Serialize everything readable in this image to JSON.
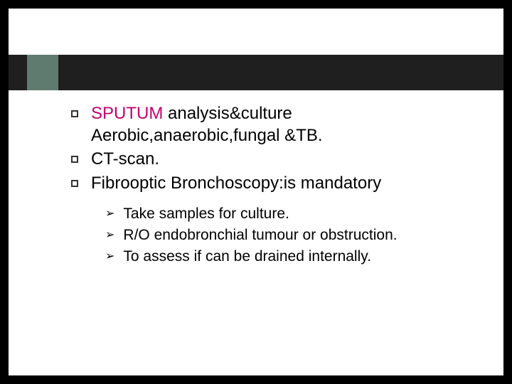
{
  "colors": {
    "page_bg": "#000000",
    "slide_bg": "#ffffff",
    "header_bar": "#1f1f1f",
    "accent_block": "#5f7b6f",
    "text": "#000000",
    "accent_text": "#c00070"
  },
  "typography": {
    "main_fontsize": 24,
    "sub_fontsize": 21,
    "font_family": "Arial"
  },
  "main_items": [
    {
      "prefix_accent": "SPUTUM",
      "text": " analysis&culture Aerobic,anaerobic,fungal &TB."
    },
    {
      "prefix_accent": "",
      "text": "CT-scan."
    },
    {
      "prefix_accent": "",
      "text": "Fibrooptic Bronchoscopy:is mandatory"
    }
  ],
  "sub_items": [
    {
      "text": "Take samples for culture."
    },
    {
      "text": "R/O endobronchial tumour or obstruction."
    },
    {
      "text": "To assess if can be drained internally."
    }
  ]
}
